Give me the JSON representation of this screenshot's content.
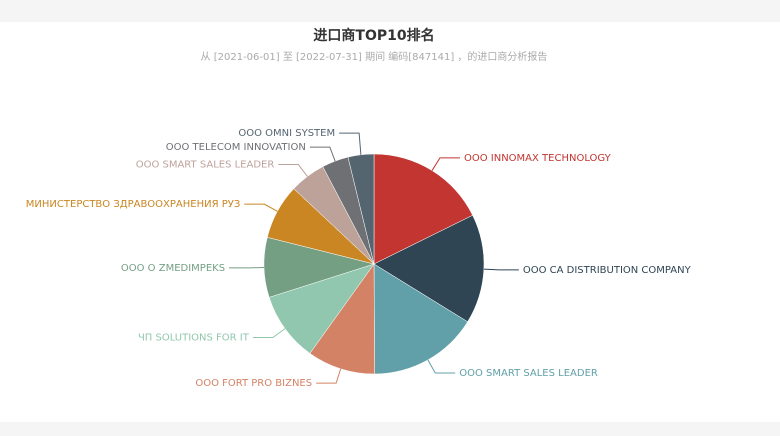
{
  "chart_data": {
    "type": "pie",
    "title": "进口商TOP10排名",
    "subtitle": "从 [2021-06-01] 至 [2022-07-31] 期间 编码[847141] ，的进口商分析报告",
    "categories": [
      "OOO INNOMAX TECHNOLOGY",
      "OOO CA DISTRIBUTION COMPANY",
      "OOO SMART SALES LEADER",
      "OOO FORT PRO BIZNES",
      "ЧП SOLUTIONS FOR IT",
      "OOO O ZMEDIMPEKS",
      "МИНИСТЕРСТВО ЗДРАВООХРАНЕНИЯ РУЗ",
      "OOO SMART SALES LEADER",
      "OOO TELECOM INNOVATION",
      "OOO OMNI SYSTEM"
    ],
    "values": [
      17.7,
      16.1,
      16.1,
      10,
      10.2,
      8.8,
      8.1,
      5.3,
      3.9,
      3.8
    ],
    "colors": [
      "#c23531",
      "#2f4554",
      "#61a0a8",
      "#d48265",
      "#91c7ae",
      "#749f83",
      "#ca8622",
      "#bda29a",
      "#6e7074",
      "#546570"
    ]
  }
}
